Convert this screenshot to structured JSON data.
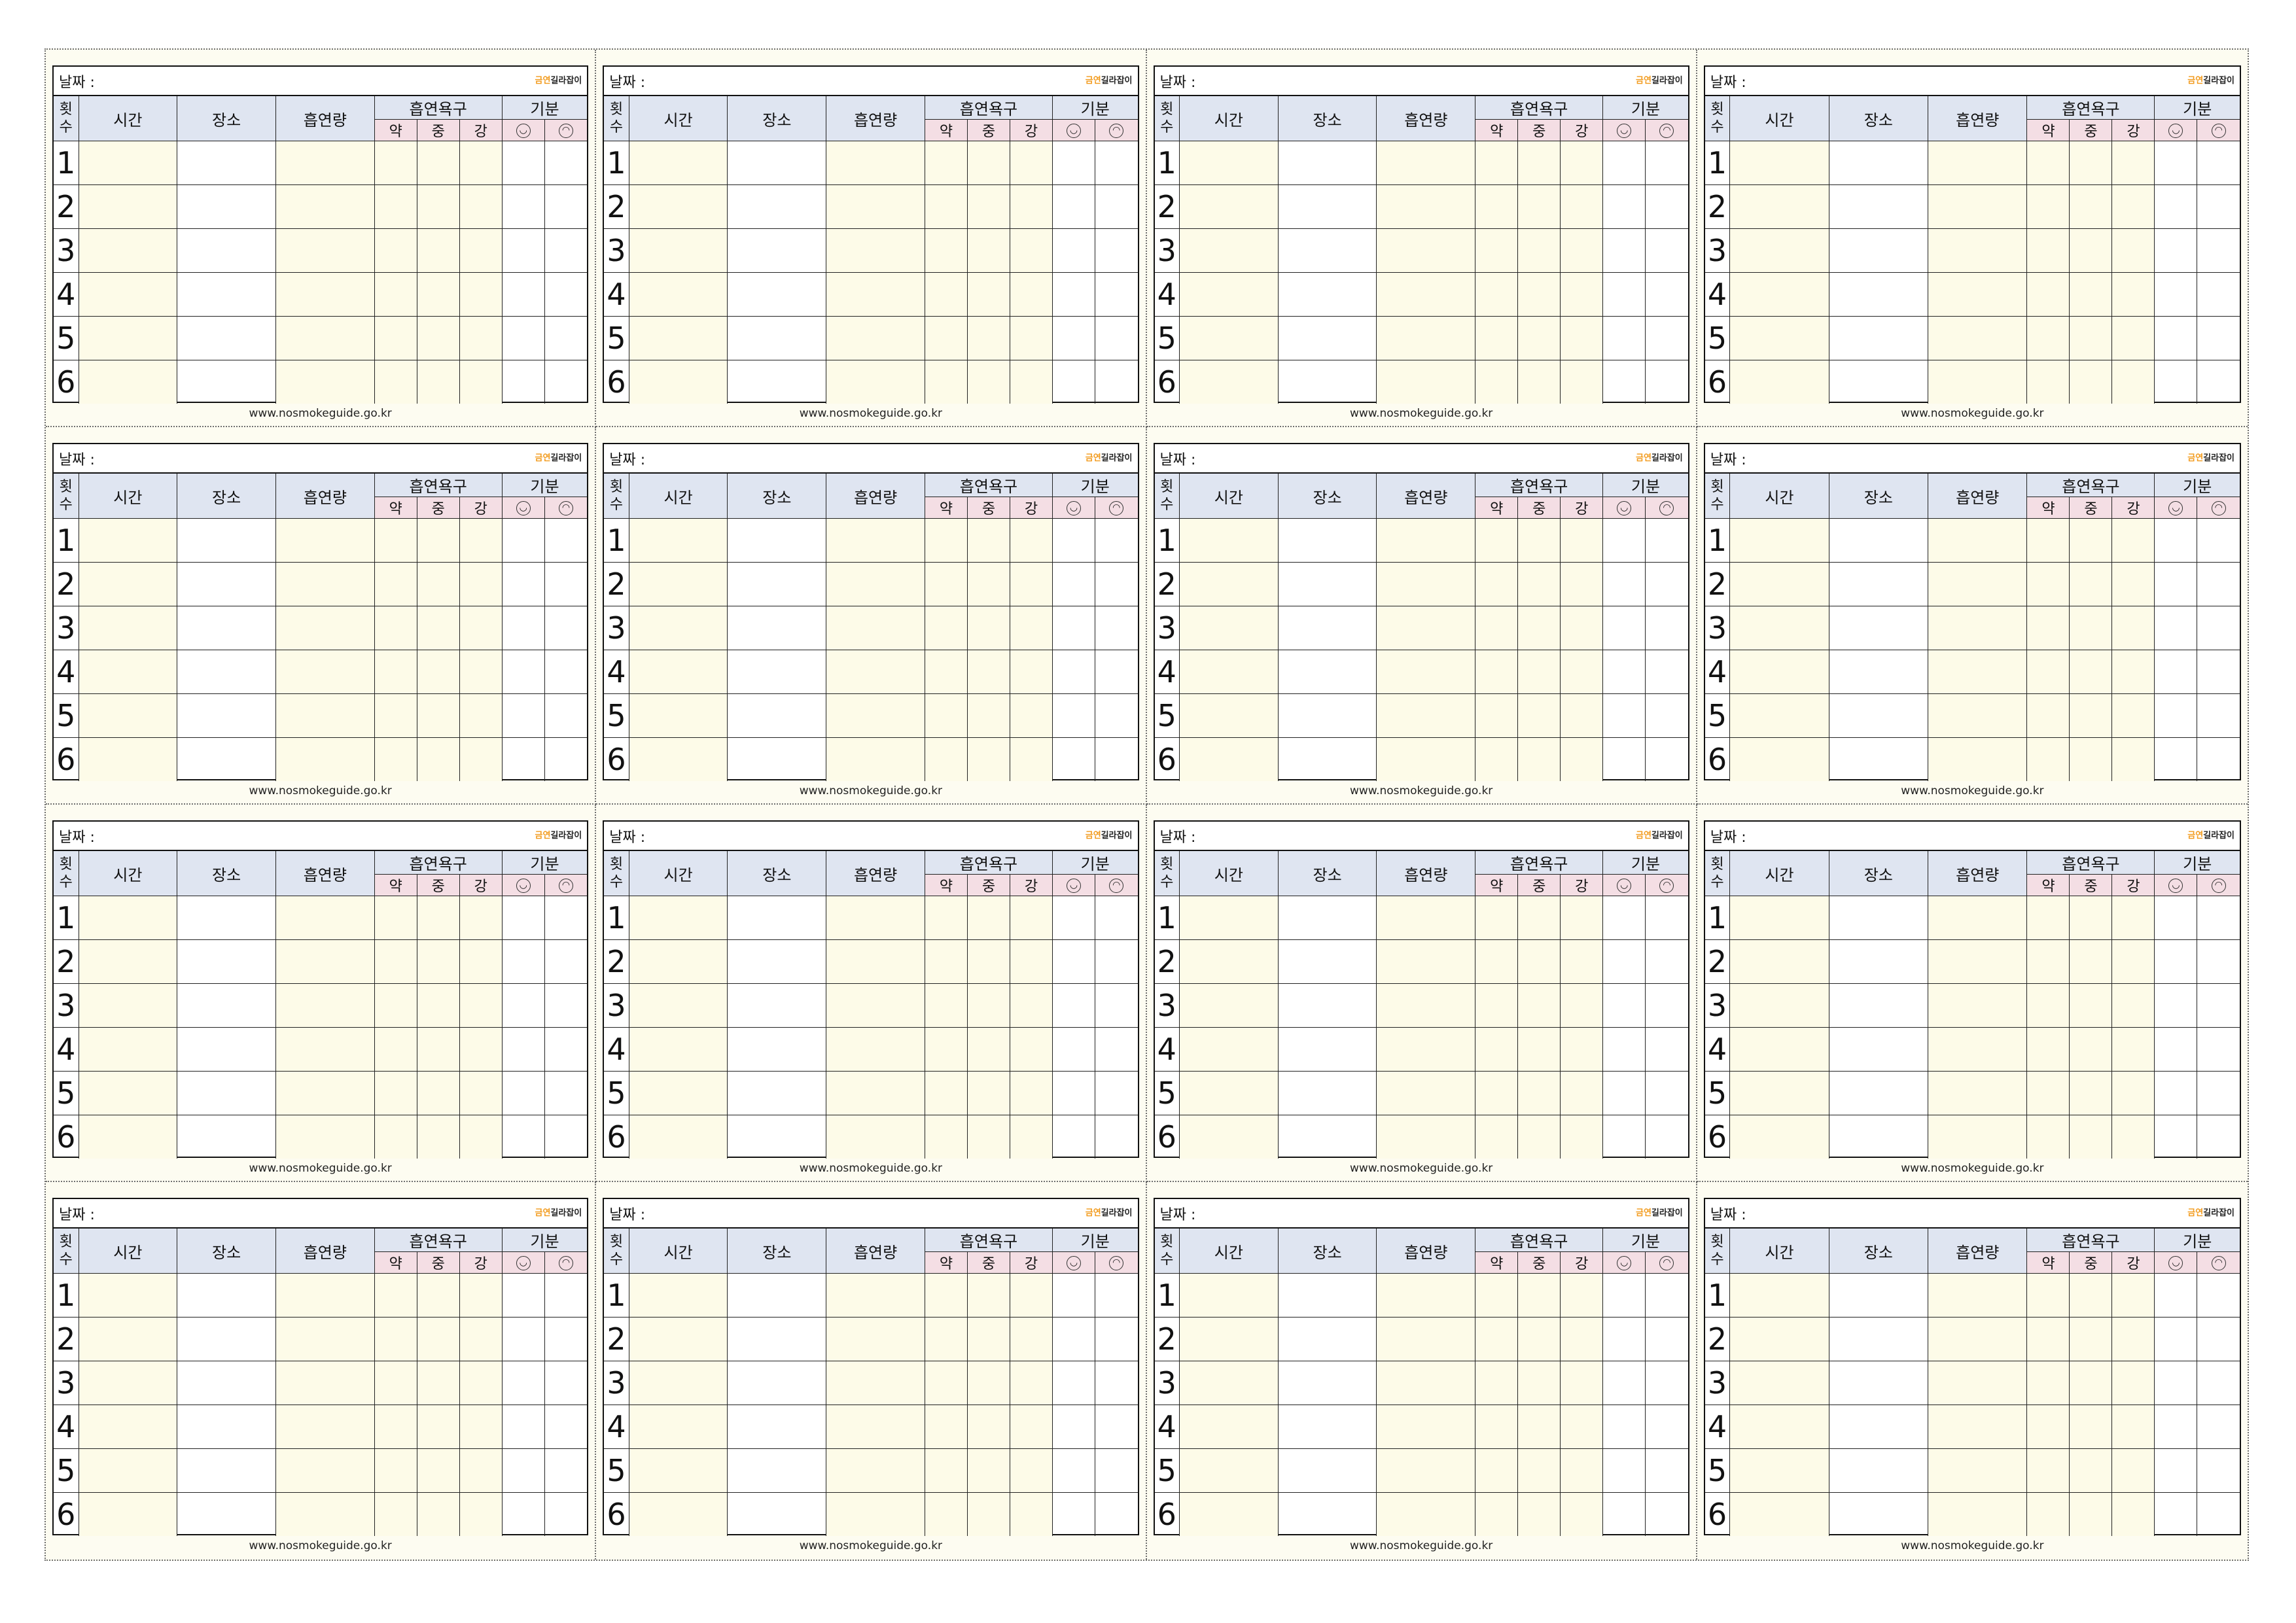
{
  "card": {
    "date_label": "날짜 :",
    "logo_prefix": "금연",
    "logo_main": "길라잡이",
    "count_header": "횟\n수",
    "col_time": "시간",
    "col_place": "장소",
    "col_amount": "흡연량",
    "col_craving": "흡연욕구",
    "col_mood": "기분",
    "craving_levels": [
      "약",
      "중",
      "강"
    ],
    "mood_icons": [
      "happy-face-icon",
      "sad-face-icon"
    ],
    "row_numbers": [
      "1",
      "2",
      "3",
      "4",
      "5",
      "6"
    ],
    "url": "www.nosmokeguide.go.kr"
  },
  "card_count": 16,
  "colors": {
    "header_blue": "#dfe5f1",
    "header_pink": "#f4dee4",
    "cell_yellow": "#fdfbe8",
    "logo_accent": "#f29b1d"
  }
}
